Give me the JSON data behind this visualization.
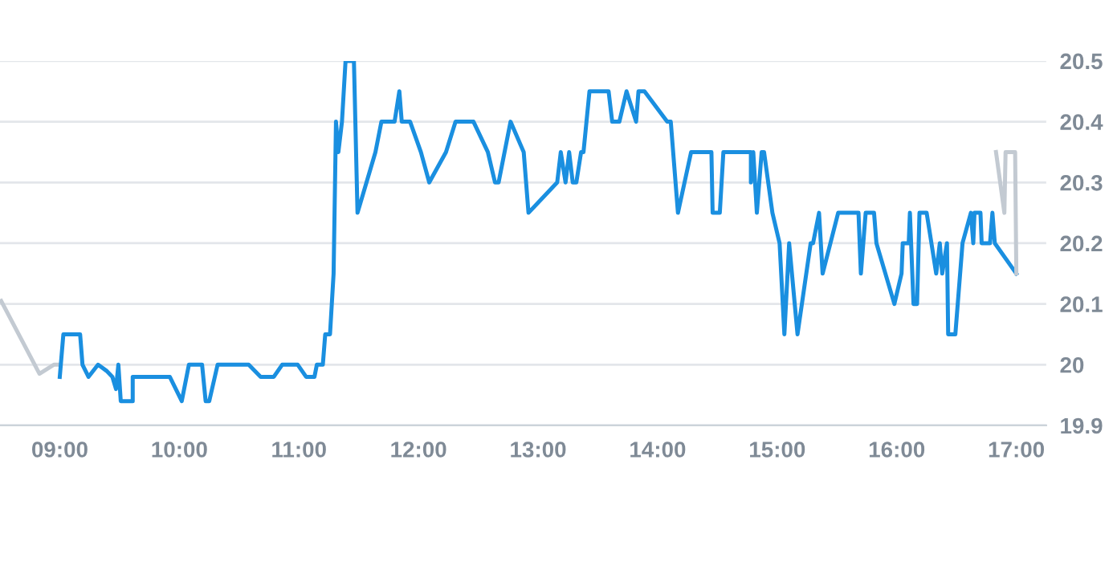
{
  "chart_data": {
    "type": "line",
    "series": [
      {
        "color": "#c3cad2",
        "x": [
          8.51,
          8.83,
          8.95,
          9.0
        ],
        "values": [
          20.105,
          19.985,
          20.0,
          20.0
        ]
      },
      {
        "color": "#1a8fe0",
        "x": [
          9.0,
          9.03,
          9.17,
          9.19,
          9.24,
          9.32,
          9.39,
          9.44,
          9.47,
          9.49,
          9.51,
          9.61,
          9.61,
          9.92,
          10.02,
          10.08,
          10.19,
          10.22,
          10.25,
          10.32,
          10.58,
          10.68,
          10.79,
          10.86,
          10.99,
          11.06,
          11.13,
          11.15,
          11.2,
          11.22,
          11.26,
          11.29,
          11.31,
          11.33,
          11.36,
          11.39,
          11.46,
          11.49,
          11.64,
          11.69,
          11.8,
          11.84,
          11.86,
          11.93,
          12.02,
          12.09,
          12.23,
          12.31,
          12.46,
          12.58,
          12.64,
          12.67,
          12.77,
          12.88,
          12.9,
          12.92,
          13.16,
          13.19,
          13.23,
          13.26,
          13.29,
          13.32,
          13.36,
          13.38,
          13.43,
          13.59,
          13.62,
          13.68,
          13.74,
          13.82,
          13.84,
          13.89,
          14.08,
          14.11,
          14.17,
          14.28,
          14.45,
          14.46,
          14.52,
          14.55,
          14.78,
          14.78,
          14.8,
          14.83,
          14.87,
          14.89,
          14.96,
          15.02,
          15.06,
          15.1,
          15.17,
          15.28,
          15.3,
          15.35,
          15.38,
          15.51,
          15.68,
          15.7,
          15.74,
          15.81,
          15.83,
          15.98,
          16.04,
          16.05,
          16.1,
          16.11,
          16.14,
          16.17,
          16.19,
          16.25,
          16.33,
          16.36,
          16.38,
          16.42,
          16.43,
          16.49,
          16.55,
          16.62,
          16.64,
          16.65,
          16.7,
          16.71,
          16.78,
          16.8,
          16.82,
          17.0
        ],
        "values": [
          19.98,
          20.05,
          20.05,
          20.0,
          19.98,
          20.0,
          19.99,
          19.98,
          19.96,
          20.0,
          19.94,
          19.94,
          19.98,
          19.98,
          19.94,
          20.0,
          20.0,
          19.94,
          19.94,
          20.0,
          20.0,
          19.98,
          19.98,
          20.0,
          20.0,
          19.98,
          19.98,
          20.0,
          20.0,
          20.05,
          20.05,
          20.15,
          20.4,
          20.35,
          20.4,
          20.5,
          20.5,
          20.25,
          20.35,
          20.4,
          20.4,
          20.45,
          20.4,
          20.4,
          20.35,
          20.3,
          20.35,
          20.4,
          20.4,
          20.35,
          20.3,
          20.3,
          20.4,
          20.35,
          20.3,
          20.25,
          20.3,
          20.35,
          20.3,
          20.35,
          20.3,
          20.3,
          20.35,
          20.35,
          20.45,
          20.45,
          20.4,
          20.4,
          20.45,
          20.4,
          20.45,
          20.45,
          20.4,
          20.4,
          20.25,
          20.35,
          20.35,
          20.25,
          20.25,
          20.35,
          20.35,
          20.3,
          20.35,
          20.25,
          20.35,
          20.35,
          20.25,
          20.2,
          20.05,
          20.2,
          20.05,
          20.2,
          20.2,
          20.25,
          20.15,
          20.25,
          20.25,
          20.15,
          20.25,
          20.25,
          20.2,
          20.1,
          20.15,
          20.2,
          20.2,
          20.25,
          20.1,
          20.1,
          20.25,
          20.25,
          20.15,
          20.2,
          20.15,
          20.2,
          20.05,
          20.05,
          20.2,
          20.25,
          20.2,
          20.25,
          20.25,
          20.2,
          20.2,
          20.25,
          20.2,
          20.15
        ]
      },
      {
        "color": "#c3cad2",
        "x": [
          16.83,
          16.9,
          16.91,
          16.99,
          17.0
        ],
        "values": [
          20.35,
          20.25,
          20.35,
          20.35,
          20.15
        ]
      }
    ],
    "xlim": [
      8.5,
      17.25
    ],
    "xticks": [
      {
        "value": 9,
        "label": "09:00"
      },
      {
        "value": 10,
        "label": "10:00"
      },
      {
        "value": 11,
        "label": "11:00"
      },
      {
        "value": 12,
        "label": "12:00"
      },
      {
        "value": 13,
        "label": "13:00"
      },
      {
        "value": 14,
        "label": "14:00"
      },
      {
        "value": 15,
        "label": "15:00"
      },
      {
        "value": 16,
        "label": "16:00"
      },
      {
        "value": 17,
        "label": "17:00"
      }
    ],
    "ylim": [
      19.9,
      20.5
    ],
    "yticks": [
      19.9,
      20,
      20.1,
      20.2,
      20.3,
      20.4,
      20.5
    ],
    "grid": "y",
    "marker": "none",
    "line_style": "solid"
  }
}
